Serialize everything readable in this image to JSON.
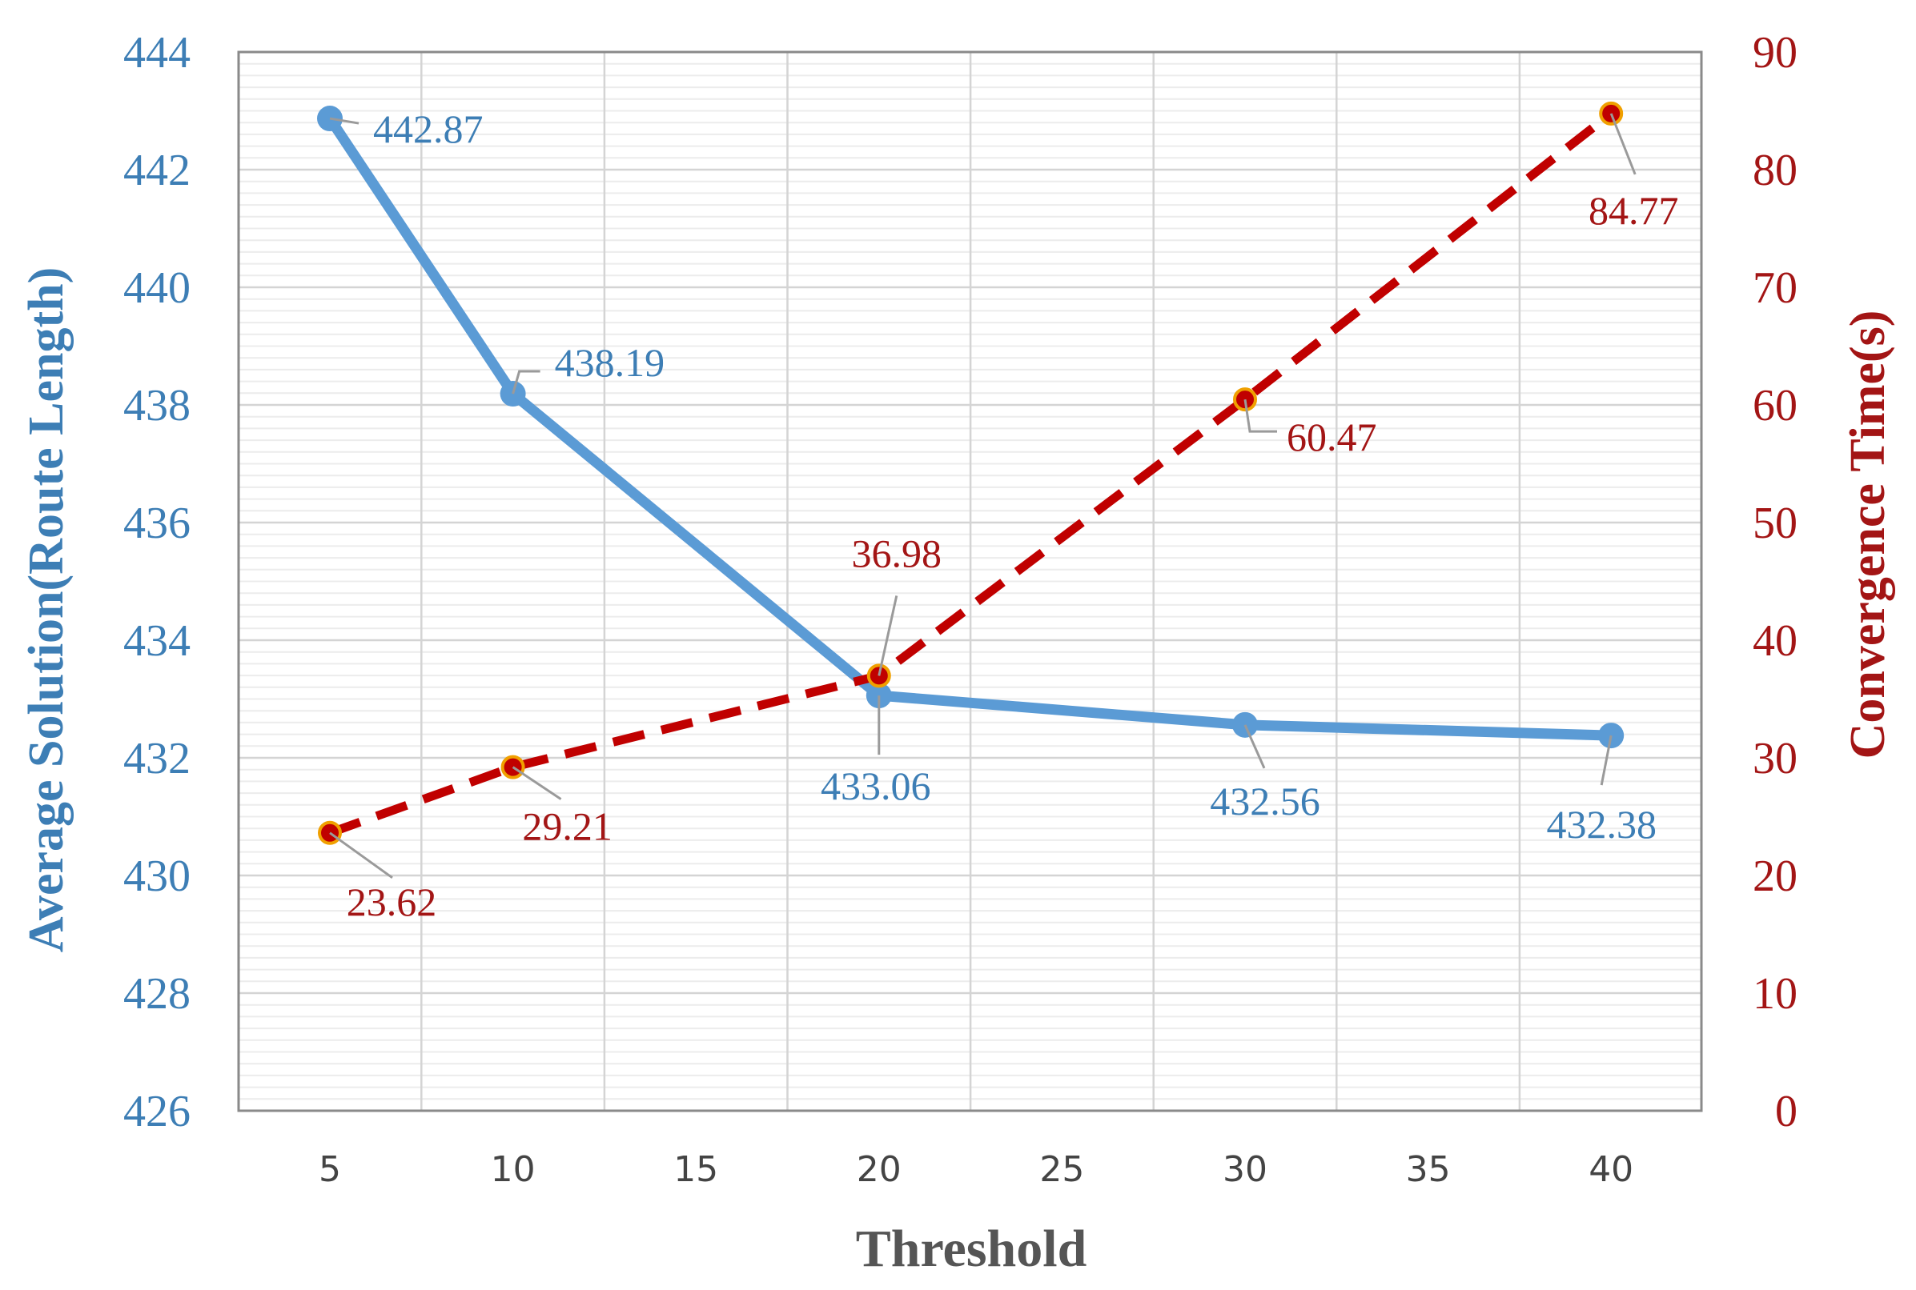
{
  "chart_data": {
    "type": "line",
    "xlabel": "Threshold",
    "ylabel_left": "Average Solution(Route Length)",
    "ylabel_right": "Convergence Time(s)",
    "x_ticks": [
      5,
      10,
      15,
      20,
      25,
      30,
      35,
      40
    ],
    "y_left_ticks": [
      426,
      428,
      430,
      432,
      434,
      436,
      438,
      440,
      442,
      444
    ],
    "y_right_ticks": [
      0,
      10,
      20,
      30,
      40,
      50,
      60,
      70,
      80,
      90
    ],
    "y_left_lim": [
      426,
      444
    ],
    "y_right_lim": [
      0,
      90
    ],
    "grid": true,
    "colors": {
      "left_series": "#5b9bd5",
      "right_series": "#c00000",
      "left_text": "#3d7eb5",
      "right_text": "#a31515"
    },
    "series": [
      {
        "axis": "left",
        "style": "solid",
        "x": [
          5,
          10,
          20,
          30,
          40
        ],
        "values": [
          442.87,
          438.19,
          433.06,
          432.56,
          432.38
        ],
        "labels": [
          "442.87",
          "438.19",
          "433.06",
          "432.56",
          "432.38"
        ]
      },
      {
        "axis": "right",
        "style": "dashed",
        "x": [
          5,
          10,
          20,
          30,
          40
        ],
        "values": [
          23.62,
          29.21,
          36.98,
          60.47,
          84.77
        ],
        "labels": [
          "23.62",
          "29.21",
          "36.98",
          "60.47",
          "84.77"
        ]
      }
    ]
  }
}
